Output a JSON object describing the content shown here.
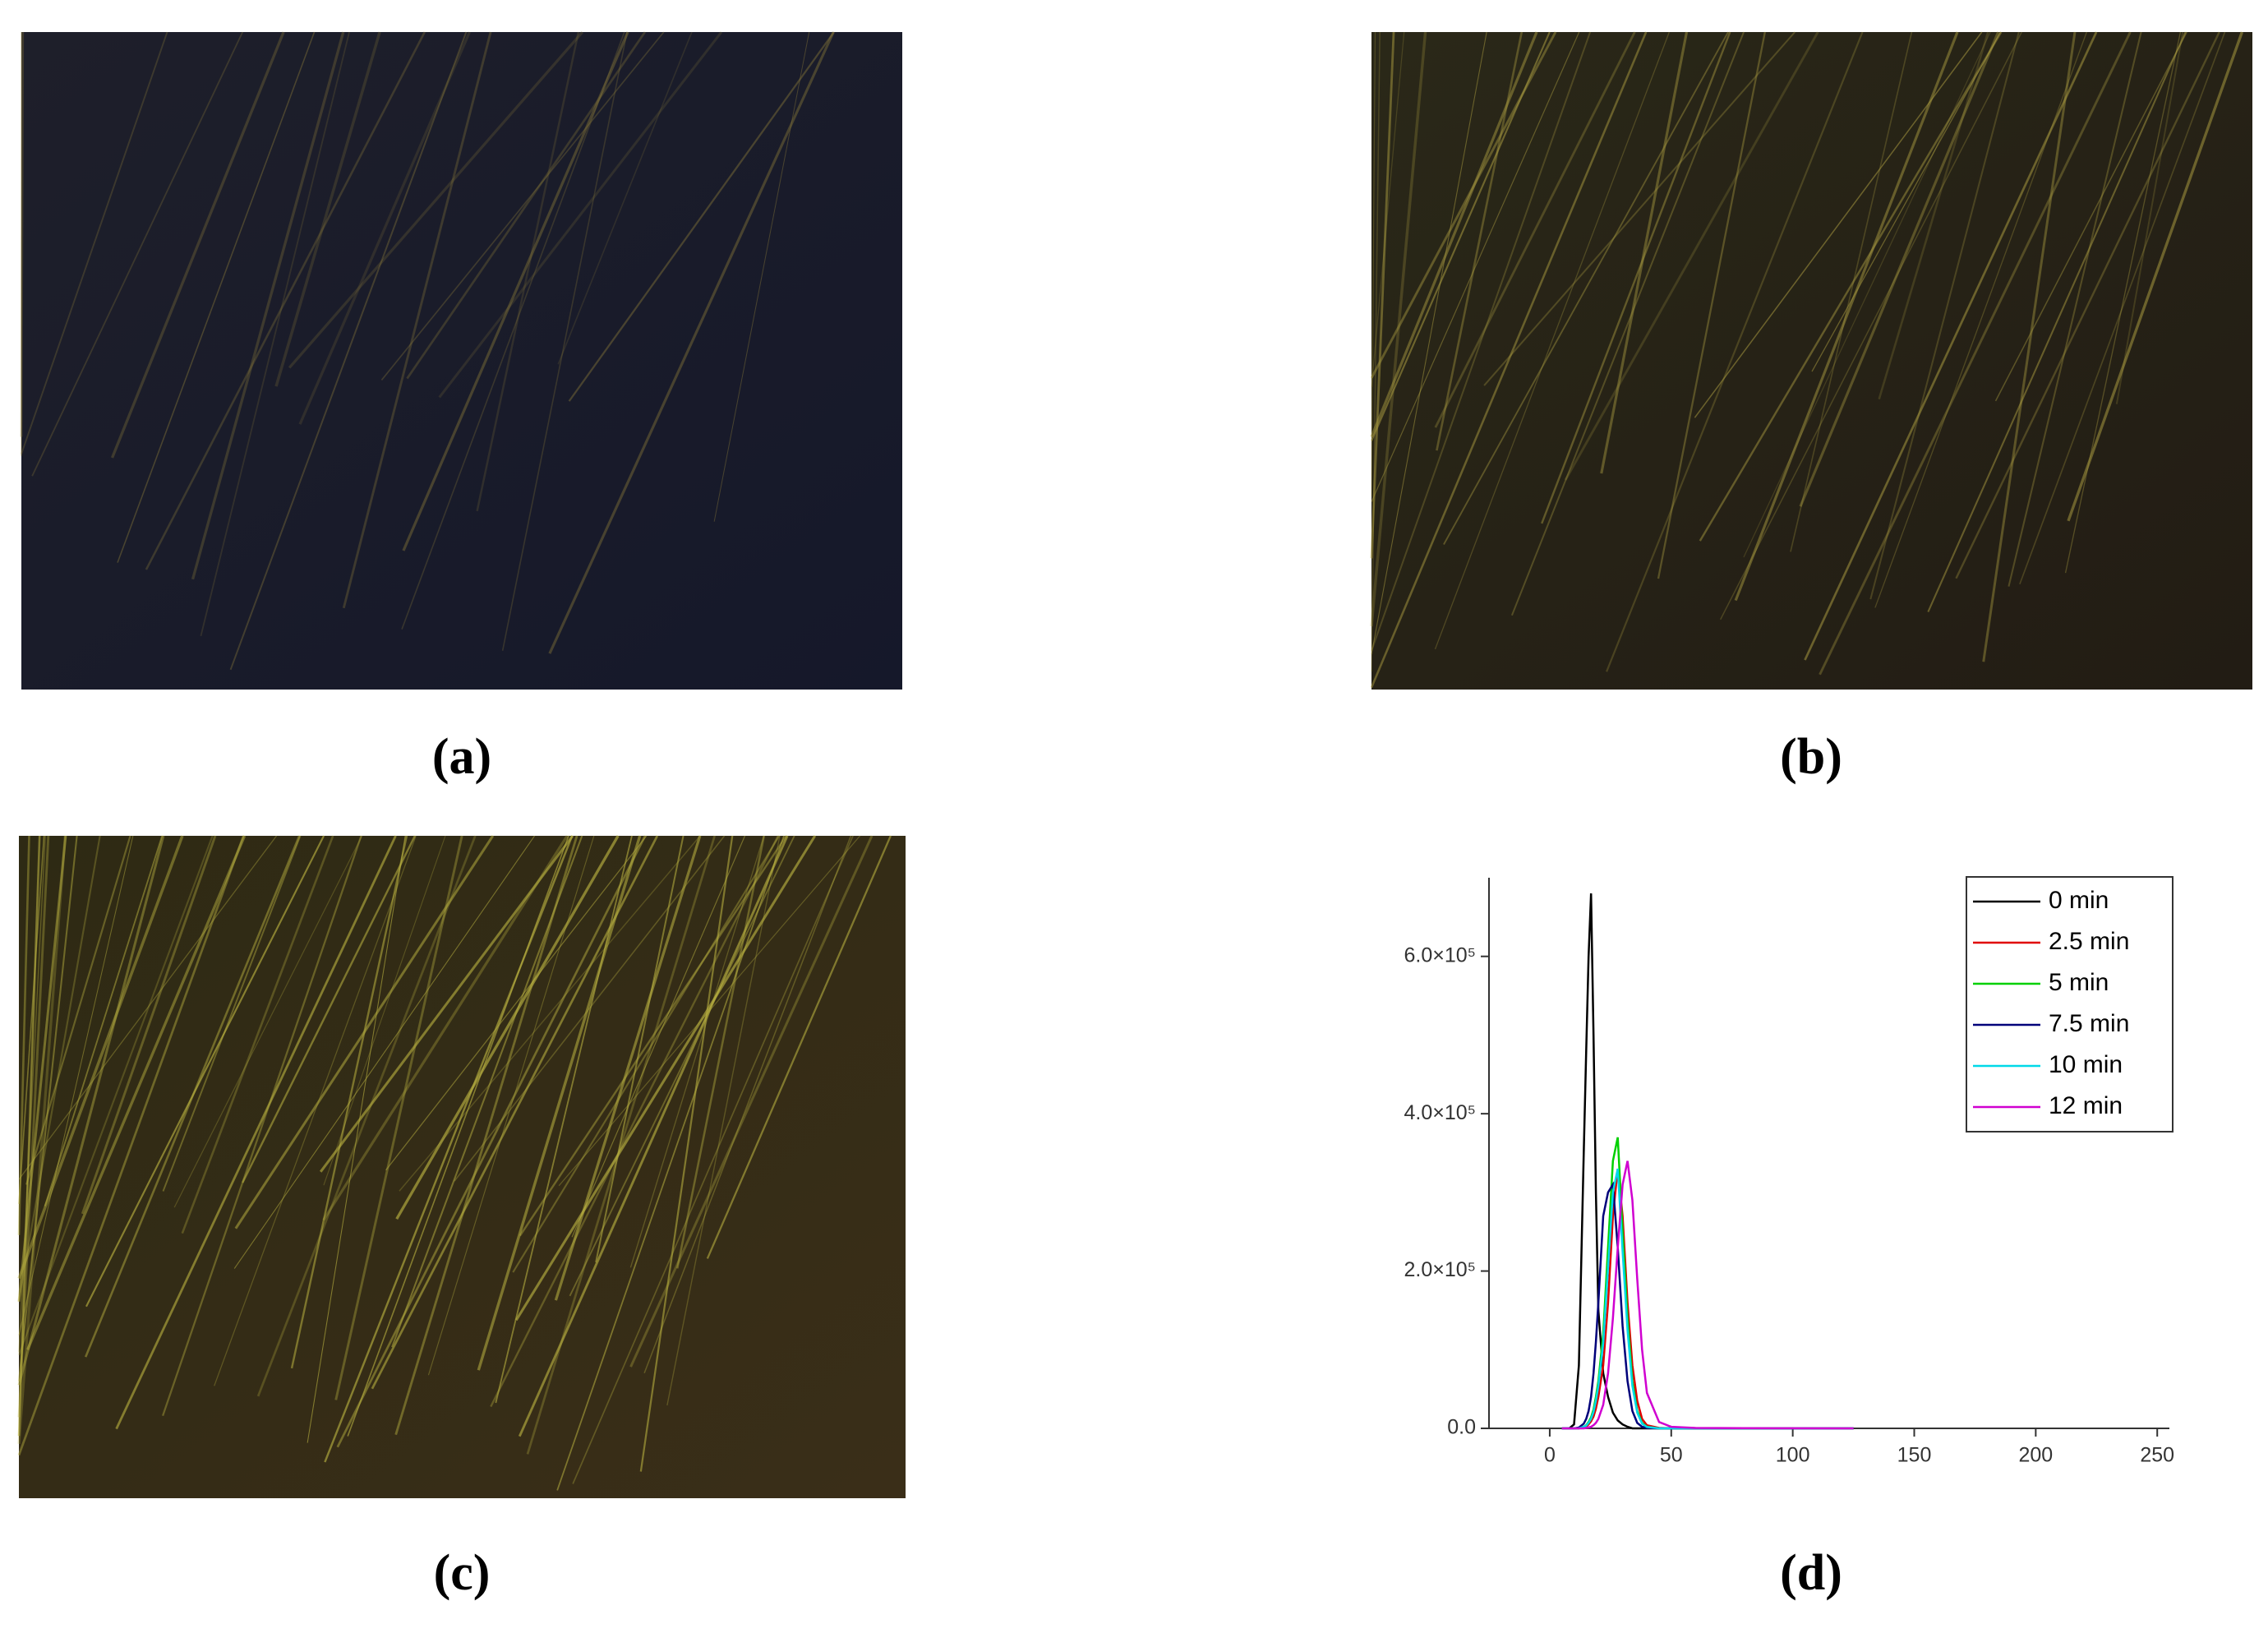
{
  "panels": [
    {
      "label": "(a)"
    },
    {
      "label": "(b)"
    },
    {
      "label": "(c)"
    },
    {
      "label": "(d)"
    }
  ],
  "chart_data": {
    "type": "line",
    "x": [
      5,
      8,
      10,
      12,
      14,
      15,
      16,
      17,
      18,
      19,
      20,
      22,
      24,
      26,
      28,
      30,
      32,
      34,
      36,
      38,
      40,
      45,
      50,
      60,
      80,
      100,
      125
    ],
    "series": [
      {
        "name": "0 min",
        "color": "#000000",
        "values": [
          0,
          0,
          5000,
          80000,
          350000,
          480000,
          600000,
          680000,
          500000,
          300000,
          150000,
          70000,
          40000,
          20000,
          10000,
          5000,
          2000,
          0,
          0,
          0,
          0,
          0,
          0,
          0,
          0,
          0,
          0
        ]
      },
      {
        "name": "2.5 min",
        "color": "#e00000",
        "values": [
          0,
          0,
          0,
          0,
          1000,
          2000,
          5000,
          9000,
          15000,
          25000,
          40000,
          80000,
          160000,
          270000,
          330000,
          270000,
          160000,
          80000,
          35000,
          12000,
          4000,
          500,
          0,
          0,
          0,
          0,
          0
        ]
      },
      {
        "name": "5 min",
        "color": "#00d000",
        "values": [
          0,
          0,
          0,
          0,
          2000,
          4000,
          8000,
          14000,
          24000,
          40000,
          60000,
          120000,
          230000,
          340000,
          370000,
          250000,
          140000,
          60000,
          22000,
          7000,
          2000,
          0,
          0,
          0,
          0,
          0,
          0
        ]
      },
      {
        "name": "7.5 min",
        "color": "#00007a",
        "values": [
          0,
          0,
          0,
          1000,
          6000,
          12000,
          22000,
          40000,
          70000,
          110000,
          160000,
          270000,
          300000,
          310000,
          230000,
          130000,
          60000,
          22000,
          7000,
          2000,
          500,
          0,
          0,
          0,
          0,
          0,
          0
        ]
      },
      {
        "name": "10 min",
        "color": "#00d8e8",
        "values": [
          0,
          0,
          0,
          0,
          2000,
          3500,
          7000,
          12000,
          21000,
          35000,
          54000,
          108000,
          205000,
          300000,
          330000,
          225000,
          125000,
          54000,
          20000,
          6000,
          1800,
          0,
          0,
          0,
          0,
          0,
          0
        ]
      },
      {
        "name": "12 min",
        "color": "#d000d0",
        "values": [
          0,
          0,
          0,
          0,
          0,
          500,
          1000,
          2000,
          4000,
          7000,
          12000,
          30000,
          70000,
          140000,
          230000,
          310000,
          340000,
          290000,
          190000,
          100000,
          45000,
          8000,
          2000,
          500,
          200,
          100,
          0
        ]
      }
    ],
    "xlim": [
      -25,
      255
    ],
    "xticks": [
      0,
      50,
      100,
      150,
      200,
      250
    ],
    "ylim": [
      0,
      700000
    ],
    "yticks": [
      {
        "value": 0,
        "label": "0.0"
      },
      {
        "value": 200000,
        "label": "2.0×10⁵"
      },
      {
        "value": 400000,
        "label": "4.0×10⁵"
      },
      {
        "value": 600000,
        "label": "6.0×10⁵"
      }
    ],
    "legend": "upper-right"
  }
}
